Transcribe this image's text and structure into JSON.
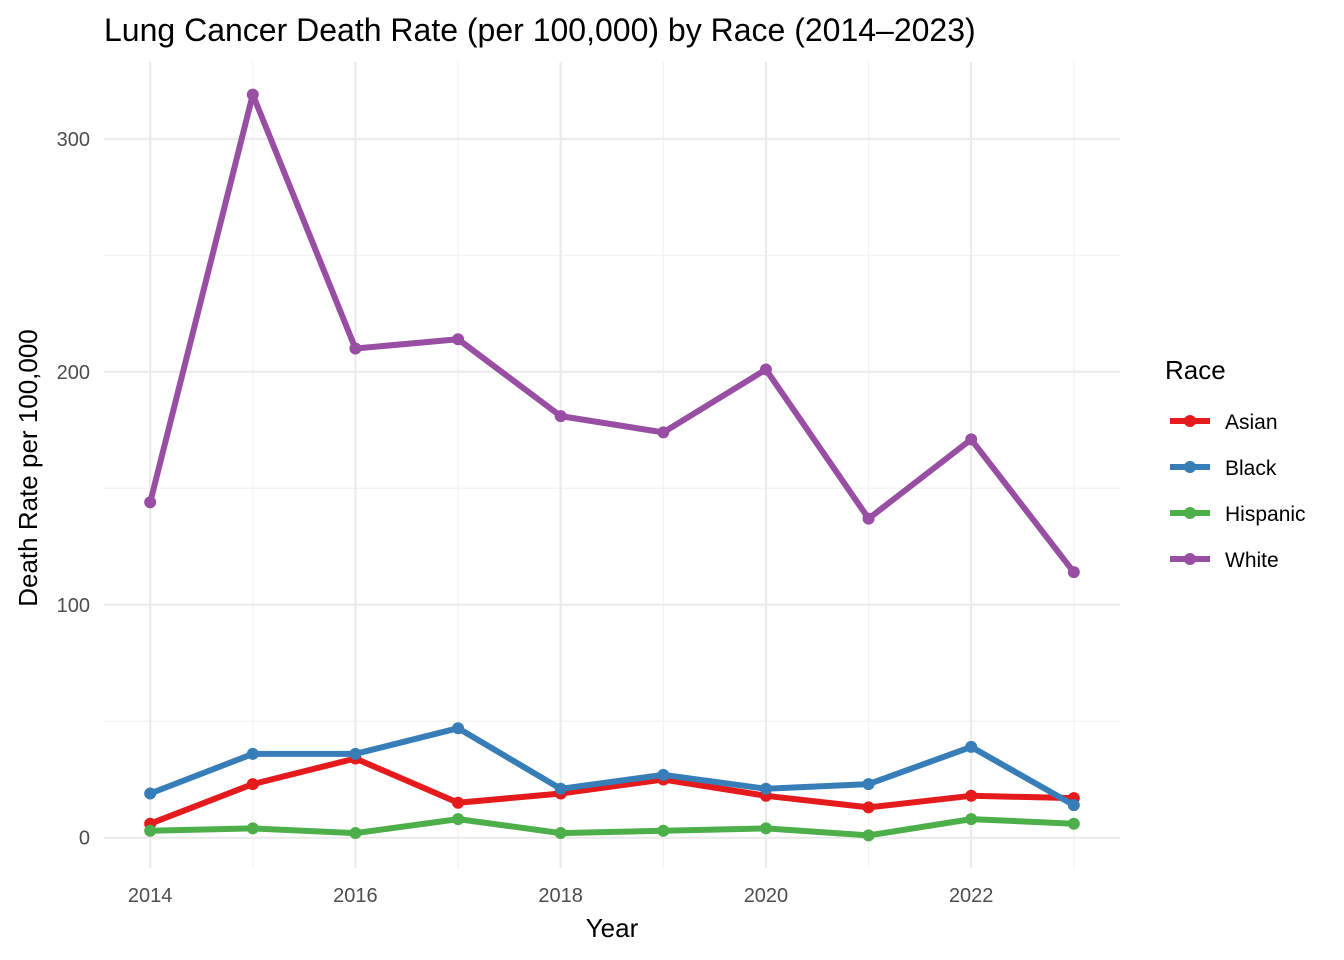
{
  "chart_data": {
    "type": "line",
    "title": "Lung Cancer Death Rate (per 100,000) by Race (2014–2023)",
    "xlabel": "Year",
    "ylabel": "Death Rate per 100,000",
    "x": [
      2014,
      2015,
      2016,
      2017,
      2018,
      2019,
      2020,
      2021,
      2022,
      2023
    ],
    "xlim": [
      2013.55,
      2023.45
    ],
    "ylim": [
      -13,
      333
    ],
    "x_ticks": [
      2014,
      2016,
      2018,
      2020,
      2022
    ],
    "y_ticks": [
      0,
      100,
      200,
      300
    ],
    "grid": true,
    "legend": {
      "title": "Race",
      "position": "right"
    },
    "series": [
      {
        "name": "Asian",
        "color": "#e41a1c",
        "values": [
          6,
          23,
          34,
          15,
          19,
          25,
          18,
          13,
          18,
          17
        ]
      },
      {
        "name": "Black",
        "color": "#377eb8",
        "values": [
          19,
          36,
          36,
          47,
          21,
          27,
          21,
          23,
          39,
          14
        ]
      },
      {
        "name": "Hispanic",
        "color": "#4daf4a",
        "values": [
          3,
          4,
          2,
          8,
          2,
          3,
          4,
          1,
          8,
          6
        ]
      },
      {
        "name": "White",
        "color": "#984ea3",
        "values": [
          144,
          319,
          210,
          214,
          181,
          174,
          201,
          137,
          171,
          114
        ]
      }
    ]
  }
}
